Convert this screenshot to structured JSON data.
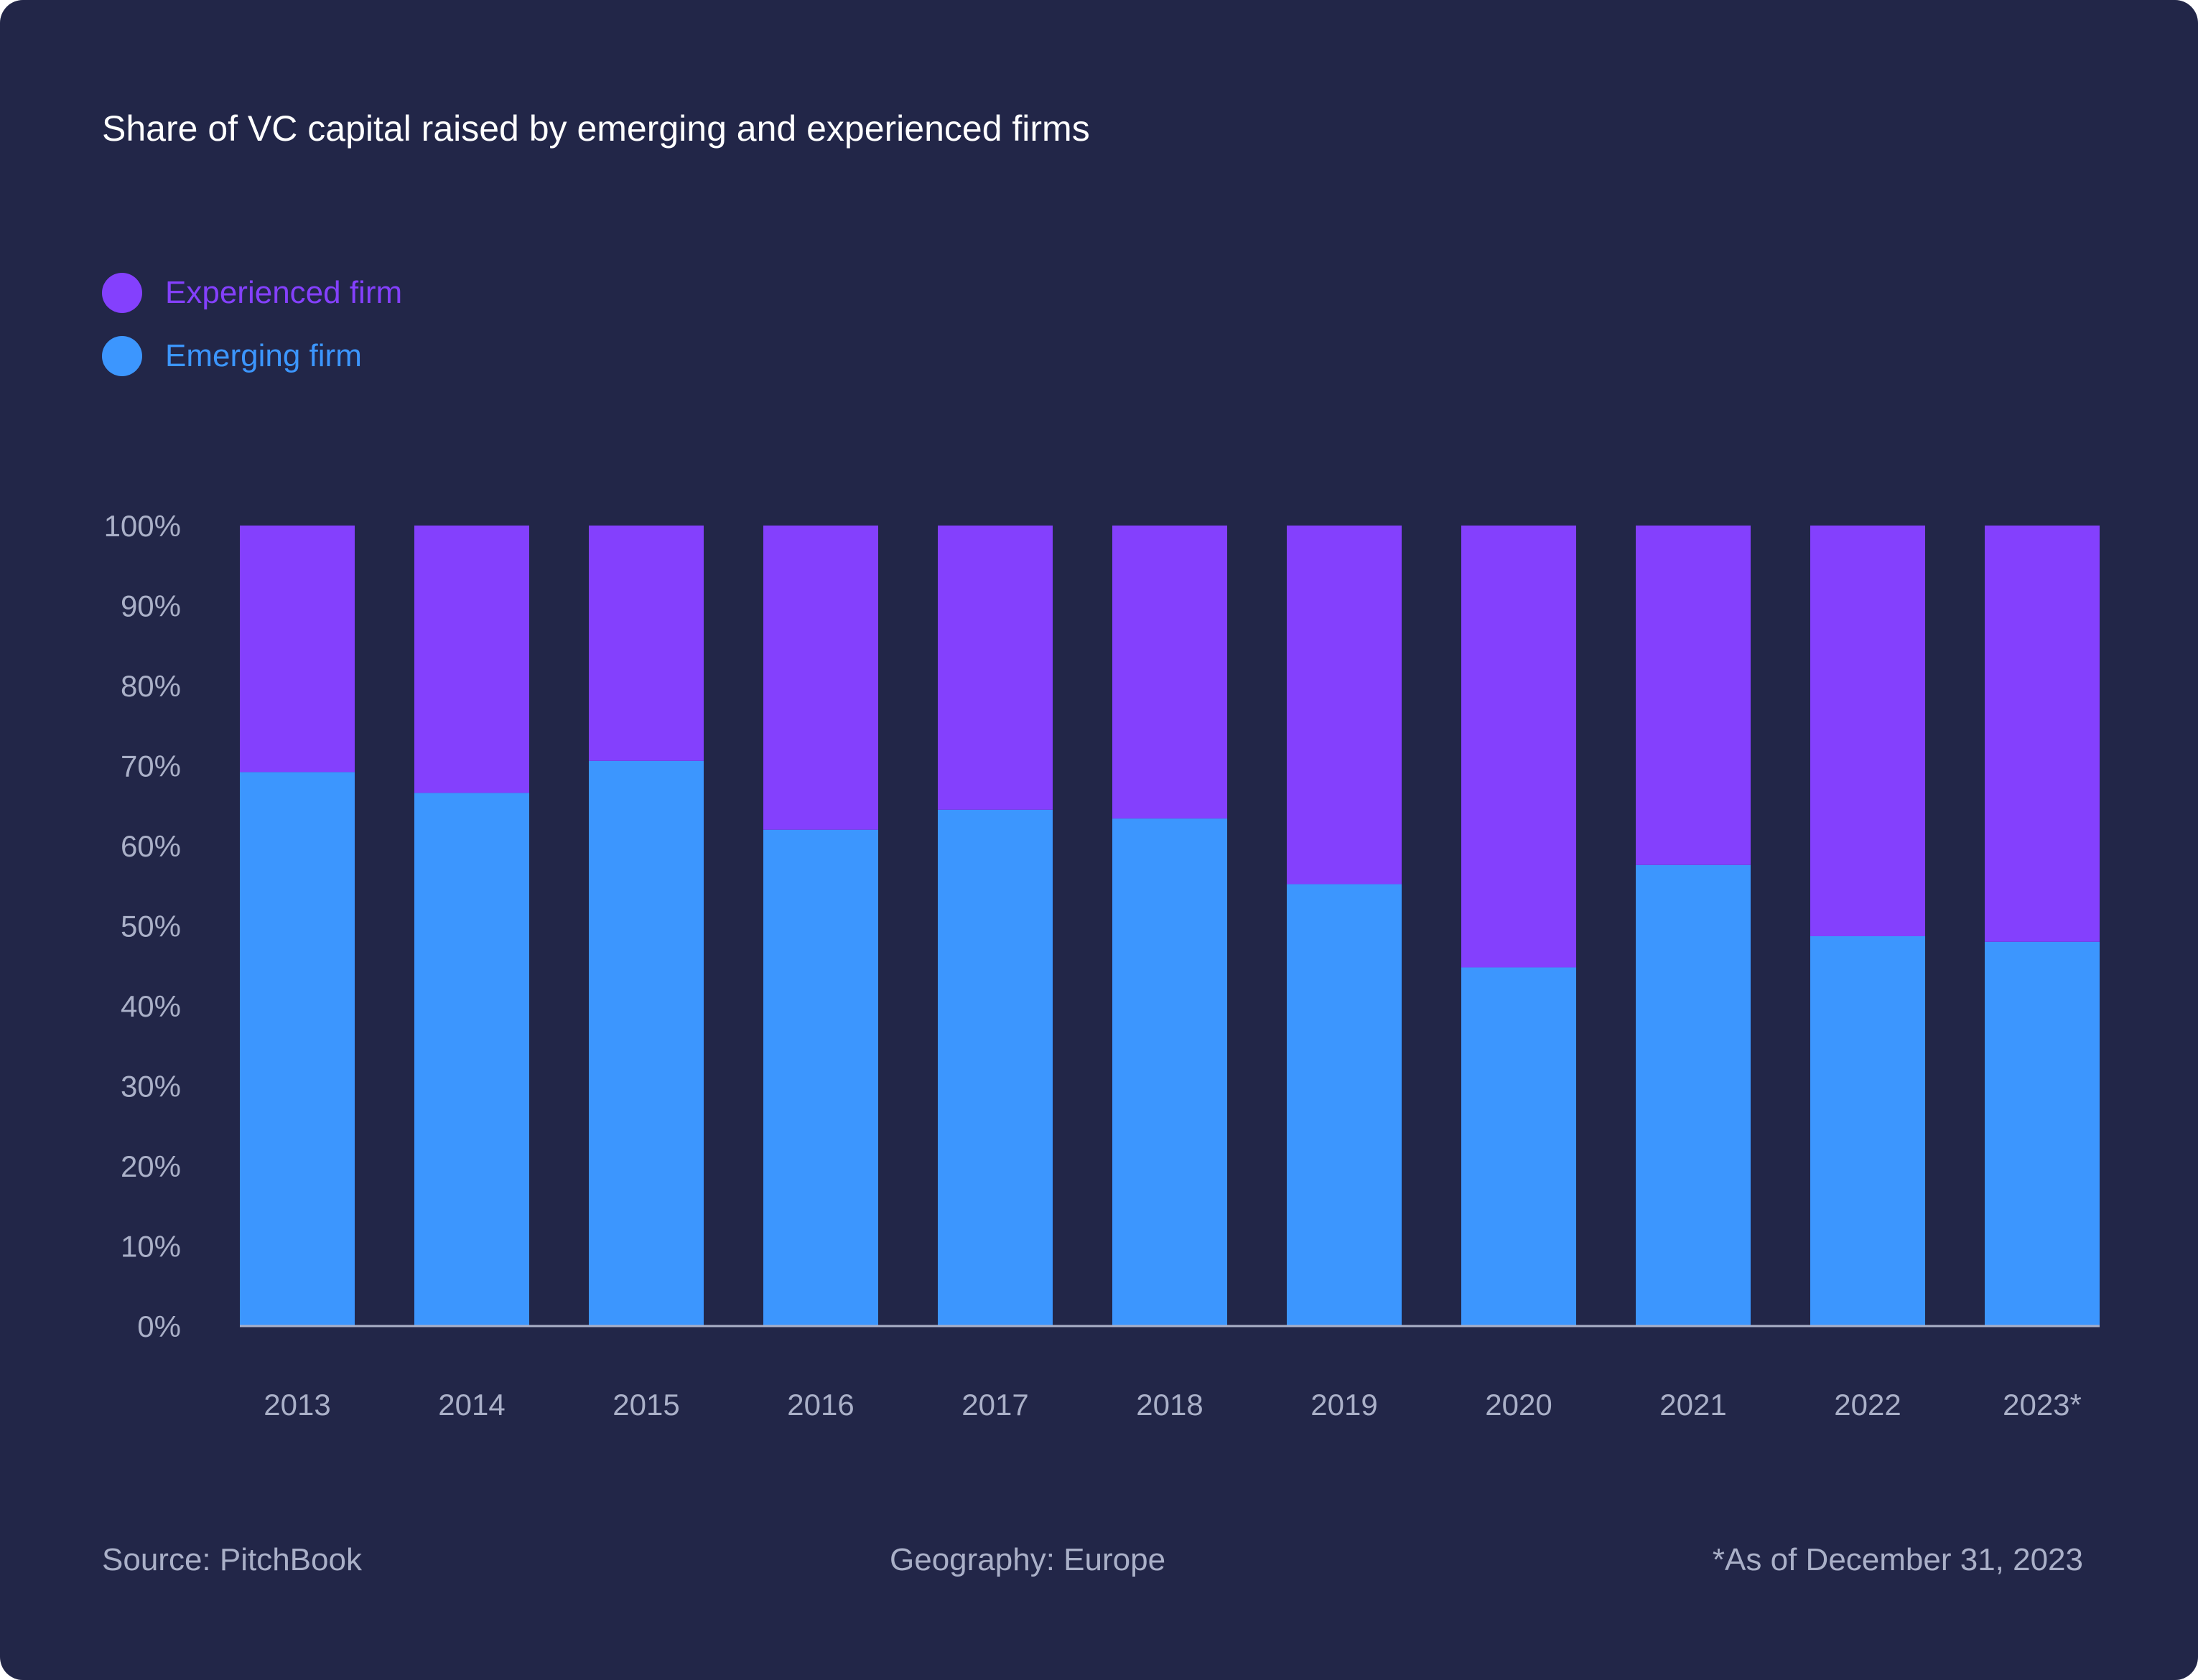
{
  "title": "Share of VC capital raised by emerging and experienced firms",
  "legend": [
    {
      "label": "Experienced firm",
      "color": "#8440fd"
    },
    {
      "label": "Emerging firm",
      "color": "#3c96fe"
    }
  ],
  "footer": {
    "source": "Source: PitchBook",
    "geography": "Geography: Europe",
    "note": "*As of December 31, 2023"
  },
  "chart_data": {
    "type": "bar",
    "stacked": true,
    "categories": [
      "2013",
      "2014",
      "2015",
      "2016",
      "2017",
      "2018",
      "2019",
      "2020",
      "2021",
      "2022",
      "2023*"
    ],
    "series": [
      {
        "name": "Emerging firm",
        "color": "#3c96fe",
        "values": [
          69.2,
          66.6,
          70.6,
          62.0,
          64.5,
          63.4,
          55.2,
          44.8,
          57.6,
          48.7,
          48.0
        ]
      },
      {
        "name": "Experienced firm",
        "color": "#8440fd",
        "values": [
          30.8,
          33.4,
          29.4,
          38.0,
          35.5,
          36.6,
          44.8,
          55.2,
          42.4,
          51.3,
          52.0
        ]
      }
    ],
    "yticks": [
      "0%",
      "10%",
      "20%",
      "30%",
      "40%",
      "50%",
      "60%",
      "70%",
      "80%",
      "90%",
      "100%"
    ],
    "ylim": [
      0,
      100
    ],
    "xlabel": "",
    "ylabel": "",
    "grid": false,
    "legend_position": "top-left"
  }
}
